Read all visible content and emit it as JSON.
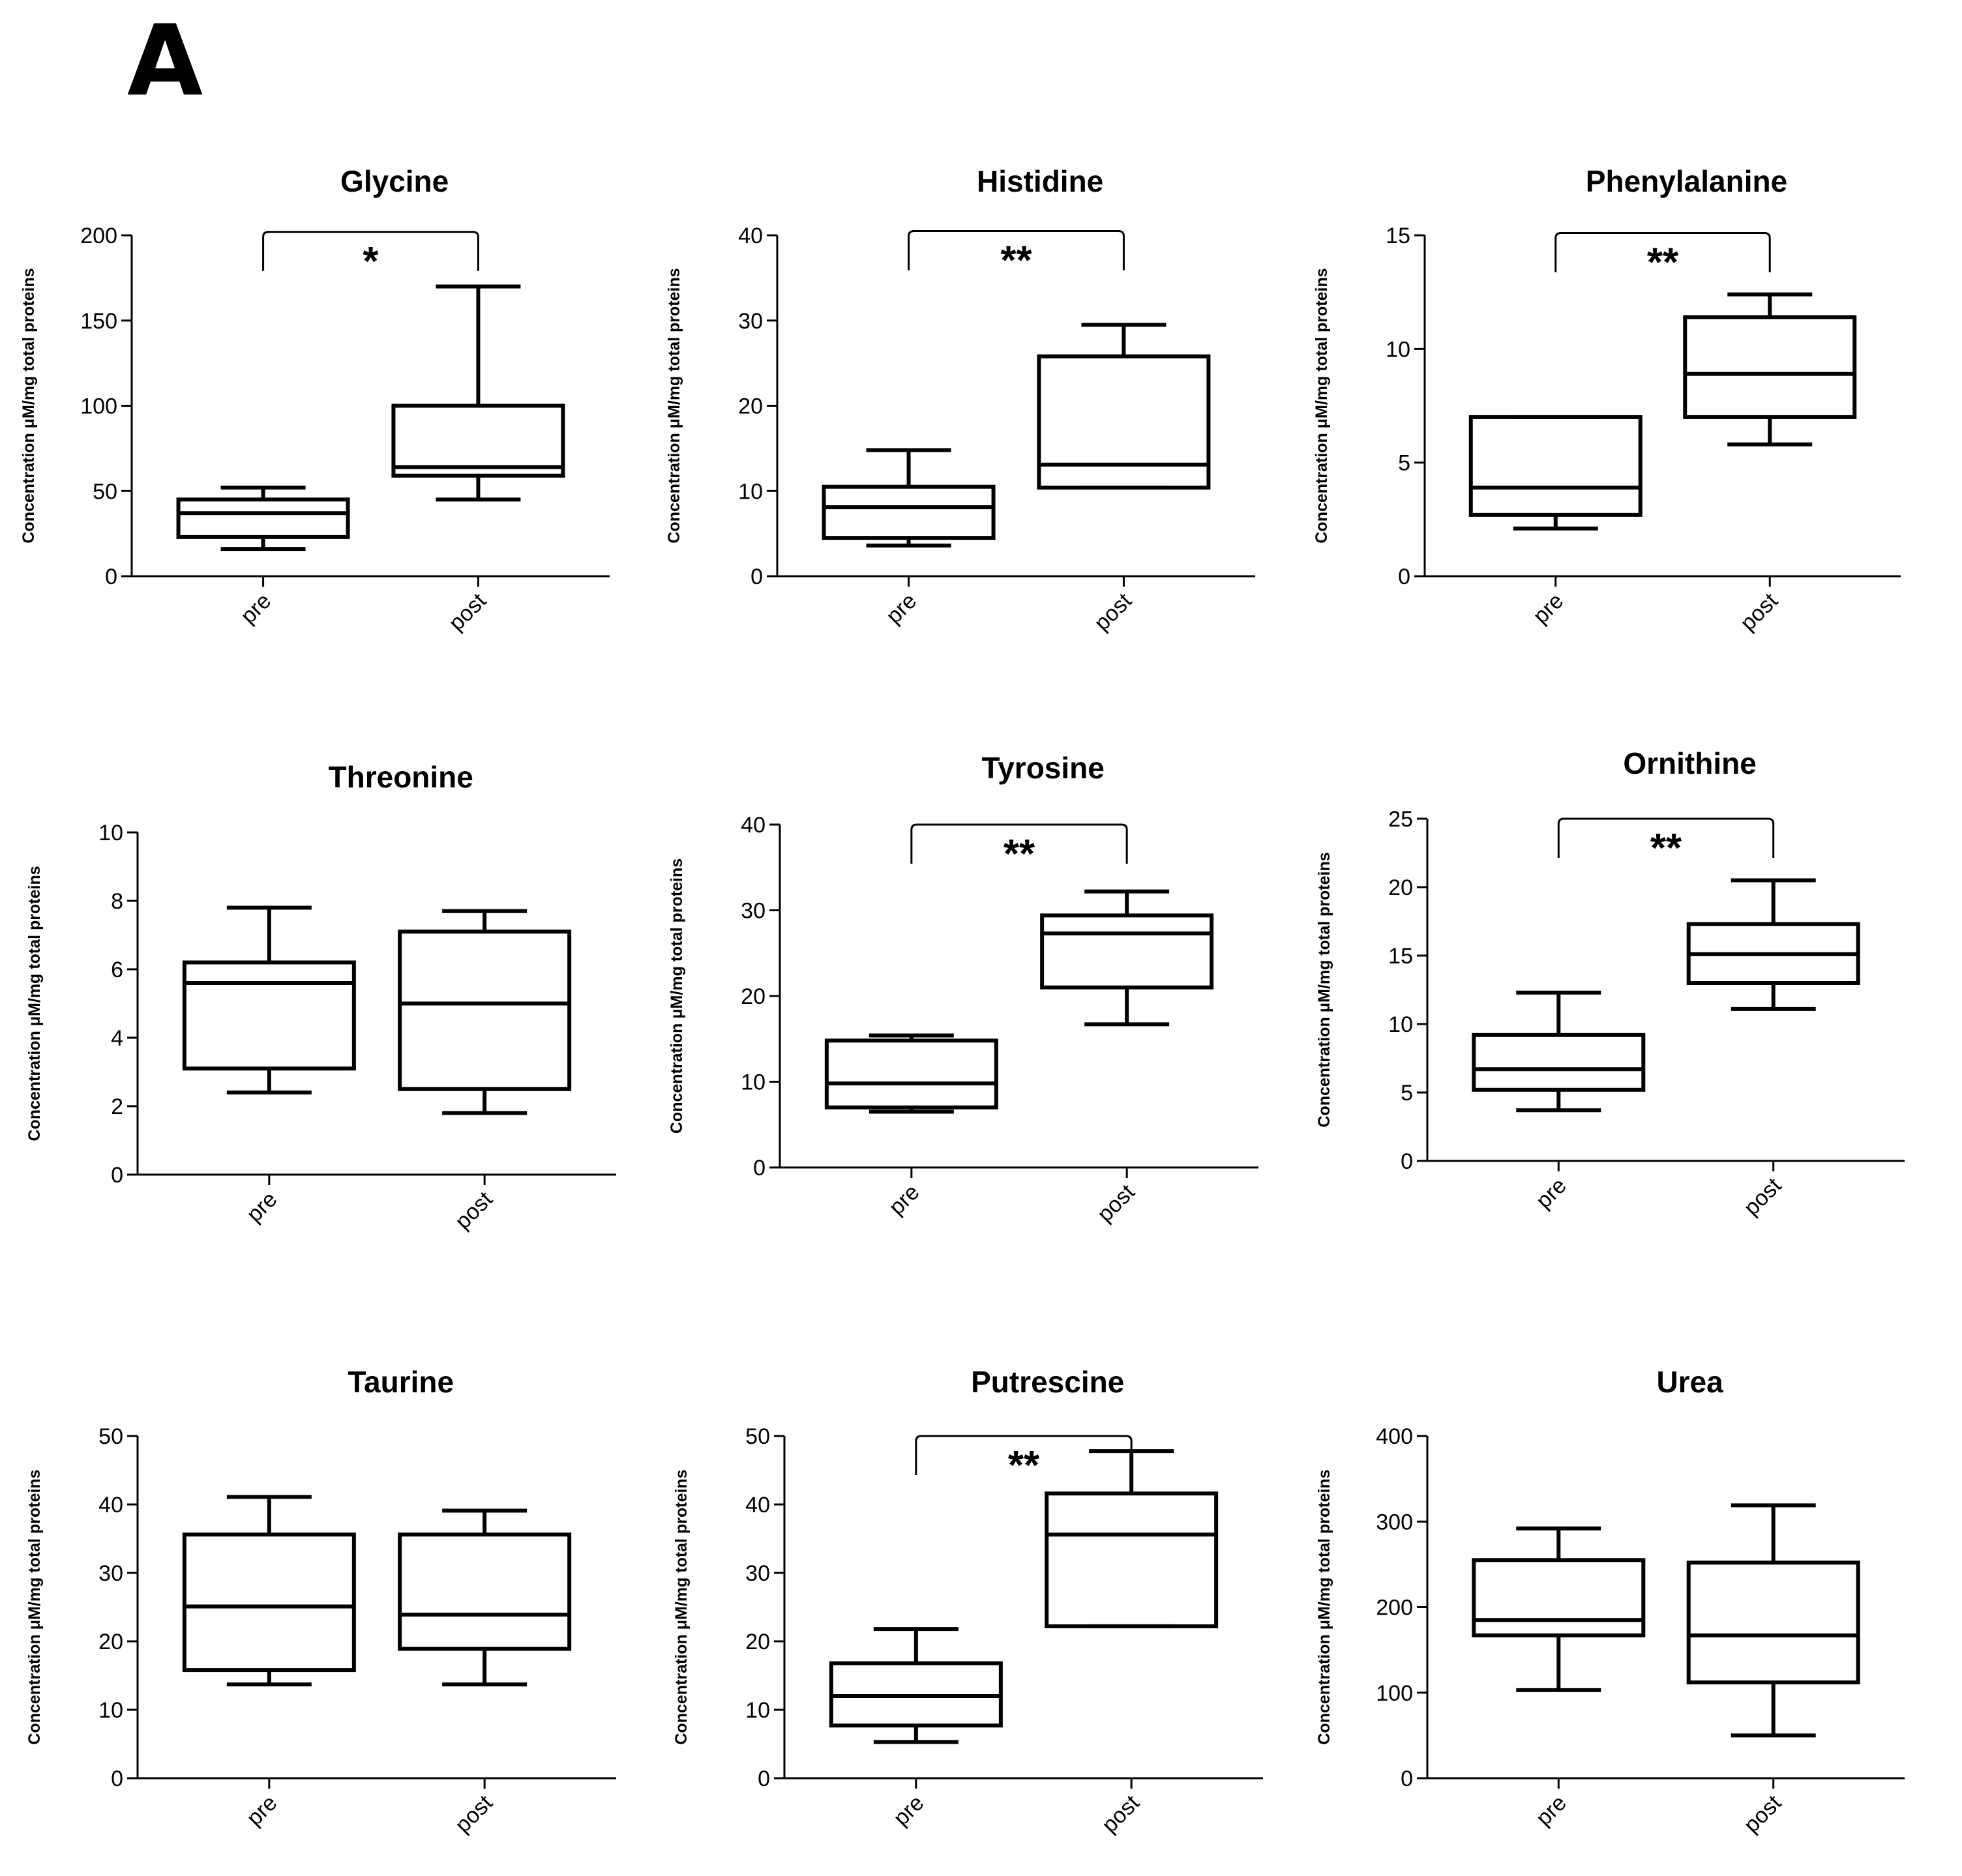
{
  "figure": {
    "panel_label": "A"
  },
  "chart_data": [
    {
      "type": "boxplot",
      "title": "Glycine",
      "categories": [
        "pre",
        "post"
      ],
      "ylabel": "Concentration μM/mg total proteins",
      "ylim": [
        0,
        200
      ],
      "yticks": [
        0,
        50,
        100,
        150,
        200
      ],
      "ytick_labels": [
        "0",
        "50",
        "100",
        "150",
        "200"
      ],
      "series": [
        {
          "name": "pre",
          "min": 16,
          "q1": 23,
          "median": 37,
          "q3": 45,
          "max": 52
        },
        {
          "name": "post",
          "min": 45,
          "q1": 59,
          "median": 64,
          "q3": 100,
          "max": 170
        }
      ],
      "significance": {
        "label": "*",
        "ytop": 202
      }
    },
    {
      "type": "boxplot",
      "title": "Histidine",
      "categories": [
        "pre",
        "post"
      ],
      "ylabel": "Concentration μM/mg total proteins",
      "ylim": [
        0,
        40
      ],
      "yticks": [
        0,
        10,
        20,
        30,
        40
      ],
      "ytick_labels": [
        "0",
        "10",
        "20",
        "30",
        "40"
      ],
      "series": [
        {
          "name": "pre",
          "min": 3.6,
          "q1": 4.5,
          "median": 8.1,
          "q3": 10.5,
          "max": 14.8
        },
        {
          "name": "post",
          "min": 10.4,
          "q1": 10.4,
          "median": 13.1,
          "q3": 25.8,
          "max": 29.5
        }
      ],
      "significance": {
        "label": "**",
        "ytop": 40.5
      }
    },
    {
      "type": "boxplot",
      "title": "Phenylalanine",
      "categories": [
        "pre",
        "post"
      ],
      "ylabel": "Concentration μM/mg total proteins",
      "ylim": [
        0,
        15
      ],
      "yticks": [
        0,
        5,
        10,
        15
      ],
      "ytick_labels": [
        "0",
        "5",
        "10",
        "15"
      ],
      "series": [
        {
          "name": "pre",
          "min": 2.1,
          "q1": 2.7,
          "median": 3.9,
          "q3": 7.0,
          "max": 7.0
        },
        {
          "name": "post",
          "min": 5.8,
          "q1": 7.0,
          "median": 8.9,
          "q3": 11.4,
          "max": 12.4
        }
      ],
      "significance": {
        "label": "**",
        "ytop": 15.1
      }
    },
    {
      "type": "boxplot",
      "title": "Threonine",
      "categories": [
        "pre",
        "post"
      ],
      "ylabel": "Concentration μM/mg total proteins",
      "ylim": [
        0,
        10
      ],
      "yticks": [
        0,
        2,
        4,
        6,
        8,
        10
      ],
      "ytick_labels": [
        "0",
        "2",
        "4",
        "6",
        "8",
        "10"
      ],
      "series": [
        {
          "name": "pre",
          "min": 2.4,
          "q1": 3.1,
          "median": 5.6,
          "q3": 6.2,
          "max": 7.8
        },
        {
          "name": "post",
          "min": 1.8,
          "q1": 2.5,
          "median": 5.0,
          "q3": 7.1,
          "max": 7.7
        }
      ],
      "significance": null
    },
    {
      "type": "boxplot",
      "title": "Tyrosine",
      "categories": [
        "pre",
        "post"
      ],
      "ylabel": "Concentration μM/mg total proteins",
      "ylim": [
        0,
        40
      ],
      "yticks": [
        0,
        10,
        20,
        30,
        40
      ],
      "ytick_labels": [
        "0",
        "10",
        "20",
        "30",
        "40"
      ],
      "series": [
        {
          "name": "pre",
          "min": 6.5,
          "q1": 7.0,
          "median": 9.8,
          "q3": 14.8,
          "max": 15.4
        },
        {
          "name": "post",
          "min": 16.7,
          "q1": 21.0,
          "median": 27.3,
          "q3": 29.4,
          "max": 32.2
        }
      ],
      "significance": {
        "label": "**",
        "ytop": 40.0
      }
    },
    {
      "type": "boxplot",
      "title": "Ornithine",
      "categories": [
        "pre",
        "post"
      ],
      "ylabel": "Concentration μM/mg total proteins",
      "ylim": [
        0,
        25
      ],
      "yticks": [
        0,
        5,
        10,
        15,
        20,
        25
      ],
      "ytick_labels": [
        "0",
        "5",
        "10",
        "15",
        "20",
        "25"
      ],
      "series": [
        {
          "name": "pre",
          "min": 3.7,
          "q1": 5.2,
          "median": 6.7,
          "q3": 9.2,
          "max": 12.3
        },
        {
          "name": "post",
          "min": 11.1,
          "q1": 13.0,
          "median": 15.1,
          "q3": 17.3,
          "max": 20.5
        }
      ],
      "significance": {
        "label": "**",
        "ytop": 25.0
      }
    },
    {
      "type": "boxplot",
      "title": "Taurine",
      "categories": [
        "pre",
        "post"
      ],
      "ylabel": "Concentration μM/mg total proteins",
      "ylim": [
        0,
        50
      ],
      "yticks": [
        0,
        10,
        20,
        30,
        40,
        50
      ],
      "ytick_labels": [
        "0",
        "10",
        "20",
        "30",
        "40",
        "50"
      ],
      "series": [
        {
          "name": "pre",
          "min": 13.7,
          "q1": 15.8,
          "median": 25.1,
          "q3": 35.6,
          "max": 41.1
        },
        {
          "name": "post",
          "min": 13.7,
          "q1": 18.9,
          "median": 23.9,
          "q3": 35.6,
          "max": 39.1
        }
      ],
      "significance": null
    },
    {
      "type": "boxplot",
      "title": "Putrescine",
      "categories": [
        "pre",
        "post"
      ],
      "ylabel": "Concentration μM/mg total proteins",
      "ylim": [
        0,
        50
      ],
      "yticks": [
        0,
        10,
        20,
        30,
        40,
        50
      ],
      "ytick_labels": [
        "0",
        "10",
        "20",
        "30",
        "40",
        "50"
      ],
      "series": [
        {
          "name": "pre",
          "min": 5.3,
          "q1": 7.7,
          "median": 12.0,
          "q3": 16.8,
          "max": 21.8
        },
        {
          "name": "post",
          "min": 22.2,
          "q1": 22.2,
          "median": 35.6,
          "q3": 41.6,
          "max": 47.8
        }
      ],
      "significance": {
        "label": "**",
        "ytop": 50.0
      }
    },
    {
      "type": "boxplot",
      "title": "Urea",
      "categories": [
        "pre",
        "post"
      ],
      "ylabel": "Concentration μM/mg total proteins",
      "ylim": [
        0,
        400
      ],
      "yticks": [
        0,
        100,
        200,
        300,
        400
      ],
      "ytick_labels": [
        "0",
        "100",
        "200",
        "300",
        "400"
      ],
      "series": [
        {
          "name": "pre",
          "min": 103,
          "q1": 167,
          "median": 185,
          "q3": 255,
          "max": 292
        },
        {
          "name": "post",
          "min": 50,
          "q1": 112,
          "median": 167,
          "q3": 252,
          "max": 319
        }
      ],
      "significance": null
    }
  ]
}
